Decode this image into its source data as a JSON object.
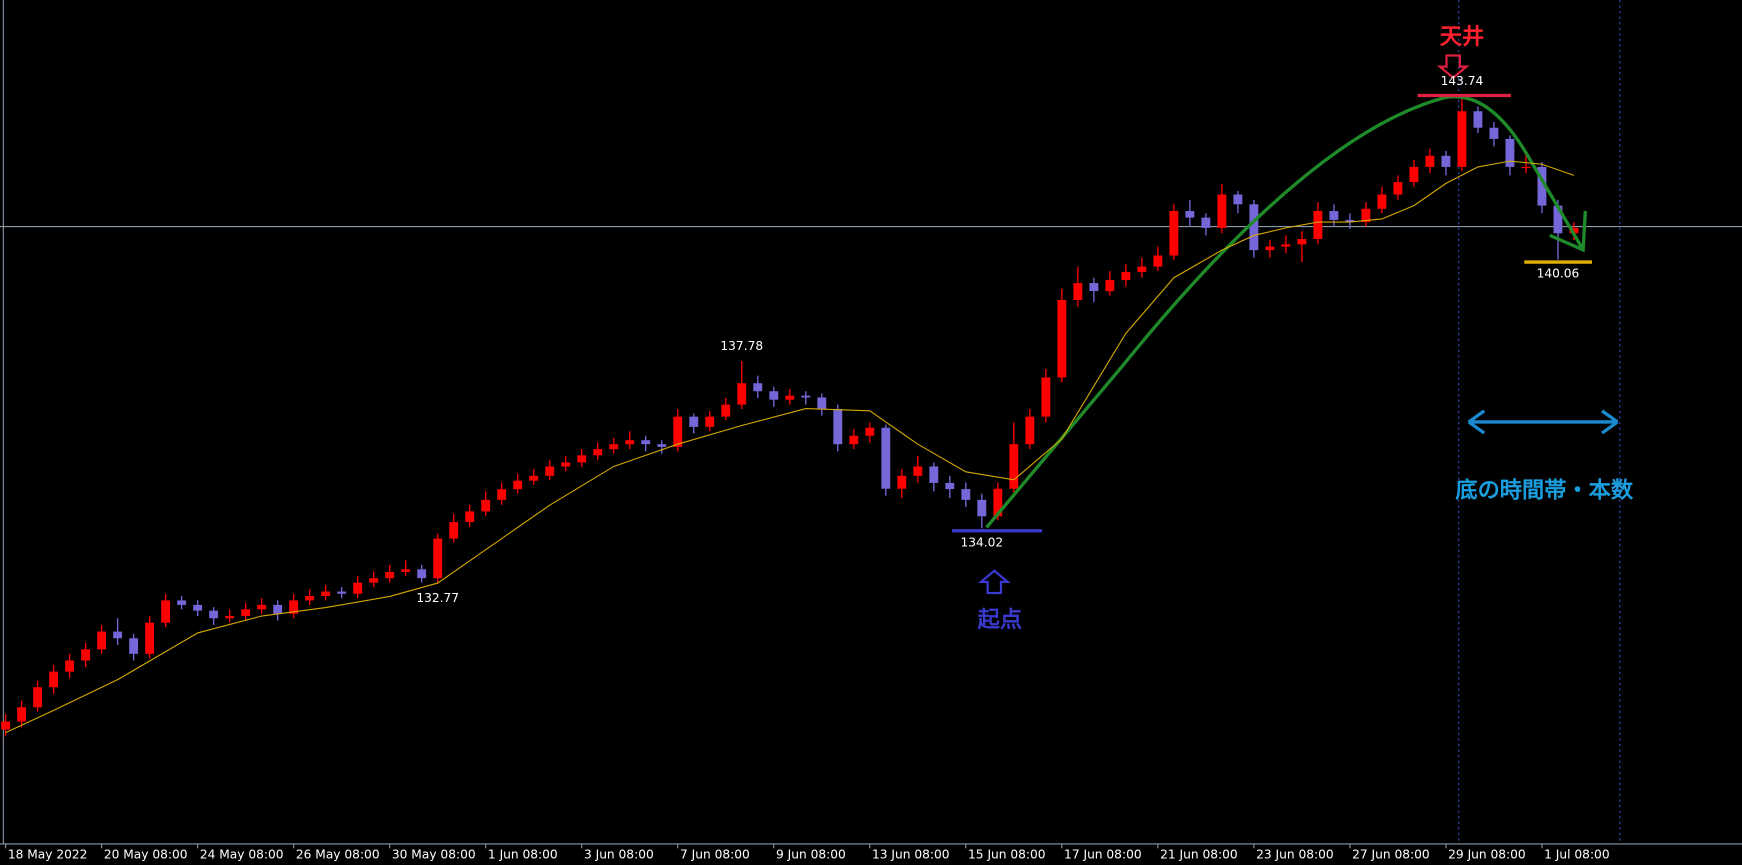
{
  "chart_data": {
    "type": "candlestick",
    "up_color": "#ff0000",
    "down_color": "#7468d8",
    "xlim": [
      -0.35,
      108.5
    ],
    "ylim": [
      126.93,
      145.89
    ],
    "xticks": [
      {
        "value": 0,
        "label": "18 May 2022"
      },
      {
        "value": 6,
        "label": "20 May 08:00"
      },
      {
        "value": 12,
        "label": "24 May 08:00"
      },
      {
        "value": 18,
        "label": "26 May 08:00"
      },
      {
        "value": 24,
        "label": "30 May 08:00"
      },
      {
        "value": 30,
        "label": "1 Jun 08:00"
      },
      {
        "value": 36,
        "label": "3 Jun 08:00"
      },
      {
        "value": 42,
        "label": "7 Jun 08:00"
      },
      {
        "value": 48,
        "label": "9 Jun 08:00"
      },
      {
        "value": 54,
        "label": "13 Jun 08:00"
      },
      {
        "value": 60,
        "label": "15 Jun 08:00"
      },
      {
        "value": 66,
        "label": "17 Jun 08:00"
      },
      {
        "value": 72,
        "label": "21 Jun 08:00"
      },
      {
        "value": 78,
        "label": "23 Jun 08:00"
      },
      {
        "value": 84,
        "label": "27 Jun 08:00"
      },
      {
        "value": 90,
        "label": "29 Jun 08:00"
      },
      {
        "value": 96,
        "label": "1 Jul 08:00"
      }
    ],
    "ohlc": [
      [
        129.5,
        129.85,
        129.35,
        129.68
      ],
      [
        129.68,
        130.15,
        129.55,
        130.0
      ],
      [
        130.0,
        130.6,
        129.9,
        130.45
      ],
      [
        130.45,
        130.95,
        130.3,
        130.8
      ],
      [
        130.8,
        131.2,
        130.65,
        131.05
      ],
      [
        131.05,
        131.45,
        130.9,
        131.3
      ],
      [
        131.3,
        131.85,
        131.2,
        131.7
      ],
      [
        131.7,
        132.0,
        131.4,
        131.55
      ],
      [
        131.55,
        131.65,
        131.05,
        131.2
      ],
      [
        131.2,
        132.05,
        131.1,
        131.9
      ],
      [
        131.9,
        132.55,
        131.8,
        132.4
      ],
      [
        132.4,
        132.5,
        132.2,
        132.3
      ],
      [
        132.3,
        132.4,
        132.05,
        132.17
      ],
      [
        132.17,
        132.25,
        131.85,
        132.0
      ],
      [
        132.0,
        132.2,
        131.9,
        132.05
      ],
      [
        132.05,
        132.35,
        131.95,
        132.2
      ],
      [
        132.2,
        132.45,
        132.1,
        132.3
      ],
      [
        132.3,
        132.4,
        131.95,
        132.1
      ],
      [
        132.1,
        132.55,
        132.0,
        132.4
      ],
      [
        132.4,
        132.65,
        132.3,
        132.5
      ],
      [
        132.5,
        132.75,
        132.4,
        132.6
      ],
      [
        132.6,
        132.7,
        132.45,
        132.55
      ],
      [
        132.55,
        132.95,
        132.45,
        132.8
      ],
      [
        132.8,
        133.05,
        132.7,
        132.9
      ],
      [
        132.9,
        133.2,
        132.8,
        133.04
      ],
      [
        133.04,
        133.3,
        132.95,
        133.1
      ],
      [
        133.1,
        133.2,
        132.8,
        132.9
      ],
      [
        132.9,
        133.9,
        132.77,
        133.79
      ],
      [
        133.79,
        134.35,
        133.7,
        134.16
      ],
      [
        134.16,
        134.55,
        134.05,
        134.4
      ],
      [
        134.4,
        134.85,
        134.3,
        134.66
      ],
      [
        134.66,
        135.05,
        134.55,
        134.9
      ],
      [
        134.9,
        135.25,
        134.8,
        135.09
      ],
      [
        135.09,
        135.35,
        135.0,
        135.2
      ],
      [
        135.2,
        135.55,
        135.1,
        135.41
      ],
      [
        135.41,
        135.65,
        135.3,
        135.5
      ],
      [
        135.5,
        135.8,
        135.4,
        135.66
      ],
      [
        135.66,
        135.95,
        135.55,
        135.8
      ],
      [
        135.8,
        136.05,
        135.7,
        135.91
      ],
      [
        135.91,
        136.2,
        135.8,
        136.0
      ],
      [
        136.0,
        136.1,
        135.75,
        135.91
      ],
      [
        135.91,
        136.0,
        135.7,
        135.85
      ],
      [
        135.85,
        136.7,
        135.75,
        136.53
      ],
      [
        136.53,
        136.6,
        136.15,
        136.3
      ],
      [
        136.3,
        136.65,
        136.2,
        136.53
      ],
      [
        136.53,
        136.95,
        136.45,
        136.8
      ],
      [
        136.8,
        137.78,
        136.7,
        137.28
      ],
      [
        137.28,
        137.45,
        136.95,
        137.1
      ],
      [
        137.1,
        137.2,
        136.75,
        136.91
      ],
      [
        136.91,
        137.15,
        136.8,
        137.0
      ],
      [
        137.0,
        137.1,
        136.8,
        136.96
      ],
      [
        136.96,
        137.05,
        136.55,
        136.7
      ],
      [
        136.7,
        136.8,
        135.75,
        135.91
      ],
      [
        135.91,
        136.25,
        135.8,
        136.1
      ],
      [
        136.1,
        136.4,
        135.95,
        136.28
      ],
      [
        136.28,
        136.35,
        134.75,
        134.91
      ],
      [
        134.91,
        135.35,
        134.7,
        135.2
      ],
      [
        135.2,
        135.65,
        135.05,
        135.41
      ],
      [
        135.41,
        135.5,
        134.85,
        135.04
      ],
      [
        135.04,
        135.2,
        134.7,
        134.9
      ],
      [
        134.9,
        135.05,
        134.5,
        134.66
      ],
      [
        134.66,
        134.8,
        134.02,
        134.29
      ],
      [
        134.29,
        135.05,
        134.2,
        134.91
      ],
      [
        134.91,
        136.4,
        134.8,
        135.91
      ],
      [
        135.91,
        136.7,
        135.8,
        136.53
      ],
      [
        136.53,
        137.6,
        136.4,
        137.41
      ],
      [
        137.41,
        139.4,
        137.3,
        139.15
      ],
      [
        139.15,
        139.9,
        139.0,
        139.53
      ],
      [
        139.53,
        139.65,
        139.1,
        139.35
      ],
      [
        139.35,
        139.8,
        139.25,
        139.6
      ],
      [
        139.6,
        139.95,
        139.45,
        139.78
      ],
      [
        139.78,
        140.1,
        139.65,
        139.9
      ],
      [
        139.9,
        140.35,
        139.8,
        140.15
      ],
      [
        140.15,
        141.3,
        140.05,
        141.15
      ],
      [
        141.15,
        141.4,
        140.8,
        141.0
      ],
      [
        141.0,
        141.1,
        140.6,
        140.77
      ],
      [
        140.77,
        141.75,
        140.65,
        141.52
      ],
      [
        141.52,
        141.6,
        141.1,
        141.3
      ],
      [
        141.3,
        141.4,
        140.1,
        140.27
      ],
      [
        140.27,
        140.5,
        140.1,
        140.35
      ],
      [
        140.35,
        140.6,
        140.2,
        140.4
      ],
      [
        140.4,
        140.7,
        140.0,
        140.52
      ],
      [
        140.52,
        141.35,
        140.4,
        141.15
      ],
      [
        141.15,
        141.3,
        140.8,
        140.95
      ],
      [
        140.95,
        141.1,
        140.75,
        140.9
      ],
      [
        140.9,
        141.35,
        140.8,
        141.2
      ],
      [
        141.2,
        141.7,
        141.1,
        141.52
      ],
      [
        141.52,
        141.95,
        141.4,
        141.8
      ],
      [
        141.8,
        142.3,
        141.7,
        142.14
      ],
      [
        142.14,
        142.55,
        142.0,
        142.39
      ],
      [
        142.39,
        142.5,
        141.95,
        142.14
      ],
      [
        142.14,
        143.74,
        142.05,
        143.39
      ],
      [
        143.39,
        143.5,
        142.9,
        143.02
      ],
      [
        143.02,
        143.15,
        142.6,
        142.77
      ],
      [
        142.77,
        142.85,
        141.95,
        142.14
      ],
      [
        142.14,
        142.4,
        142.0,
        142.14
      ],
      [
        142.14,
        142.25,
        141.1,
        141.27
      ],
      [
        141.27,
        141.4,
        140.06,
        140.65
      ],
      [
        140.65,
        140.9,
        140.5,
        140.77
      ]
    ],
    "ma": {
      "color": "#d4a800",
      "x": [
        0,
        3,
        7,
        12,
        16,
        20,
        24,
        27,
        30,
        34,
        38,
        42,
        46,
        50,
        54,
        57,
        60,
        63,
        66,
        70,
        73,
        76,
        78,
        80,
        82,
        84,
        86,
        88,
        90,
        92,
        94,
        96,
        98
      ],
      "values": [
        129.43,
        129.93,
        130.62,
        131.67,
        132.05,
        132.24,
        132.49,
        132.79,
        133.54,
        134.54,
        135.41,
        135.91,
        136.33,
        136.71,
        136.66,
        135.91,
        135.29,
        135.11,
        136.03,
        138.4,
        139.65,
        140.27,
        140.6,
        140.77,
        140.9,
        140.9,
        140.97,
        141.27,
        141.77,
        142.14,
        142.27,
        142.2,
        141.95
      ]
    },
    "price_labels": [
      {
        "x": 91,
        "value": 143.74,
        "side": "above"
      },
      {
        "x": 46,
        "value": 137.78,
        "side": "above"
      },
      {
        "x": 61,
        "value": 134.02,
        "side": "below"
      },
      {
        "x": 27,
        "value": 132.77,
        "side": "below"
      },
      {
        "x": 97,
        "value": 140.06,
        "side": "below"
      }
    ],
    "annotations": {
      "top": "天井",
      "start": "起点",
      "bottom_zone": "底の時間帯・本数"
    }
  }
}
